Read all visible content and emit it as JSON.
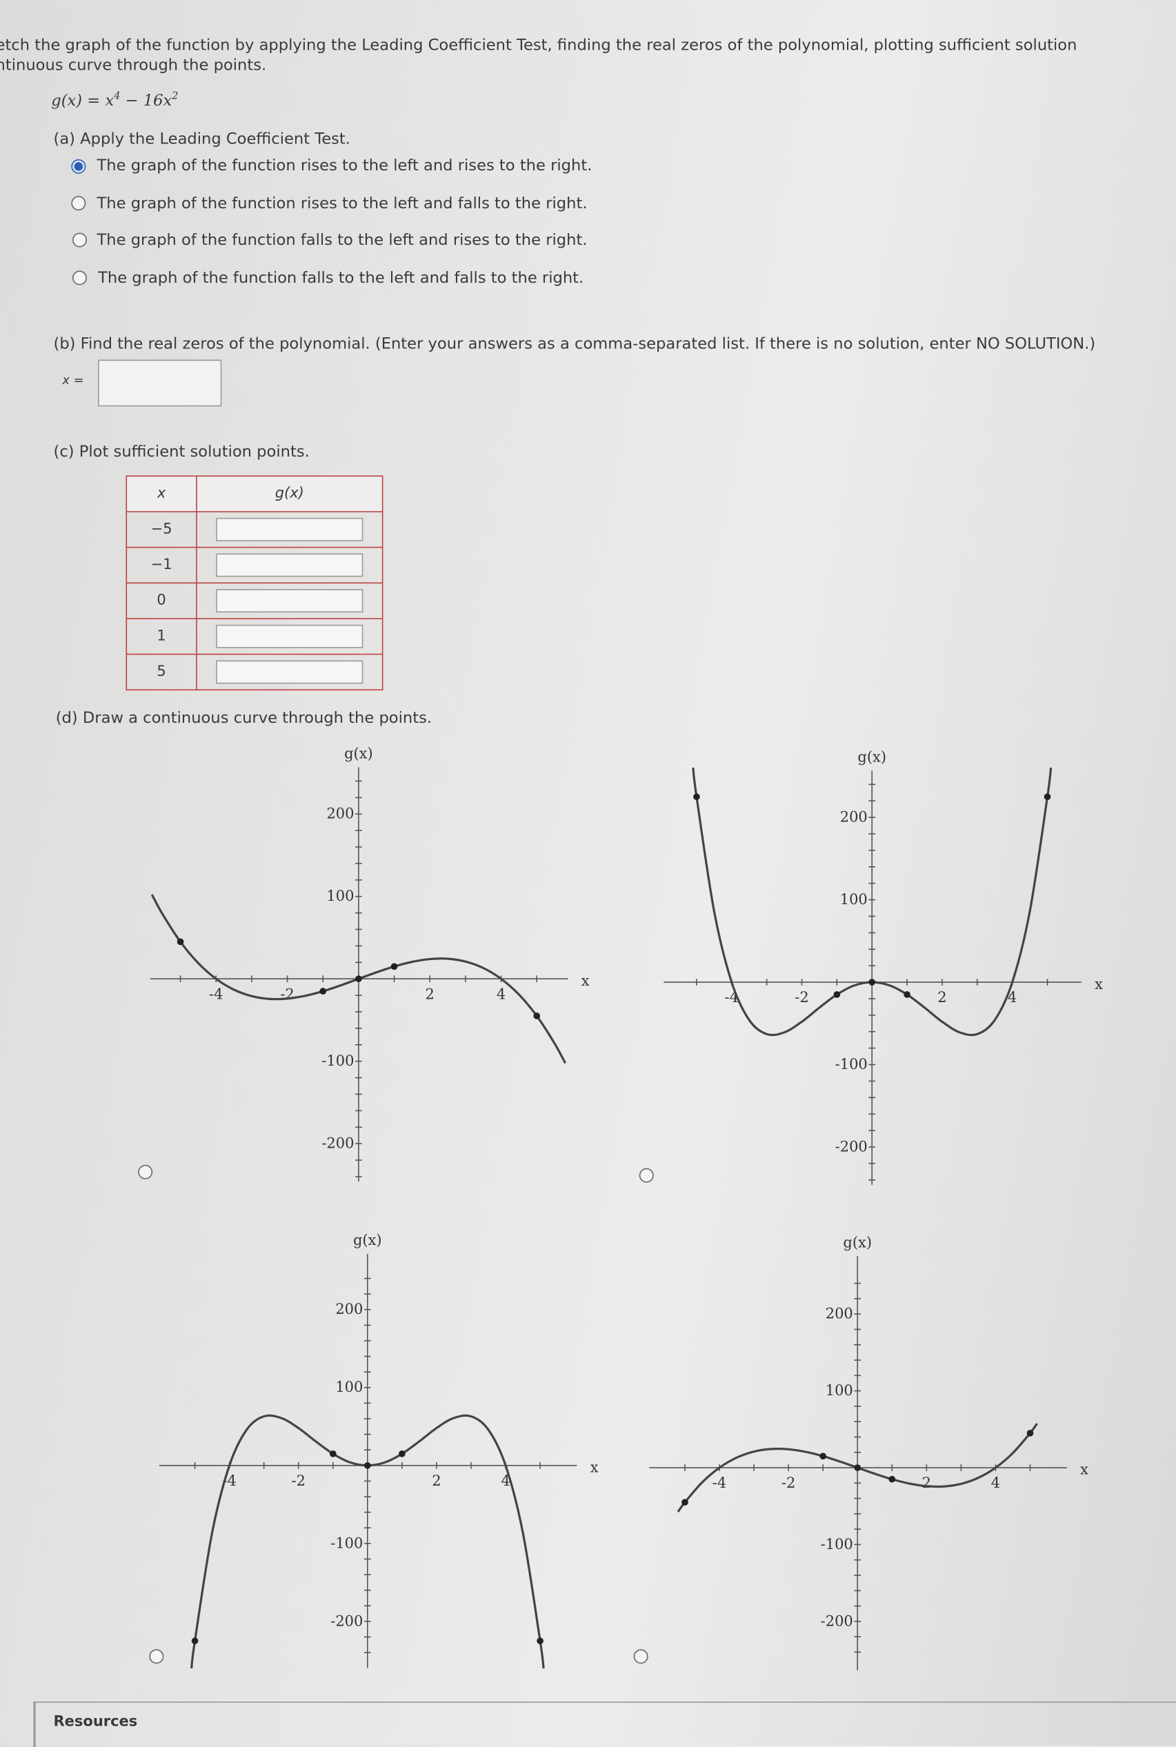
{
  "instructions": [
    "etch the graph of the function by applying the Leading Coefficient Test, finding the real zeros of the polynomial, plotting sufficient solution",
    "ntinuous curve through the points."
  ],
  "function": {
    "lhs": "g(x) = x",
    "exp1": "4",
    "mid": " − 16x",
    "exp2": "2"
  },
  "part_a": {
    "label": "(a) Apply the Leading Coefficient Test.",
    "options": [
      {
        "label": "The graph of the function rises to the left and rises to the right.",
        "selected": true
      },
      {
        "label": "The graph of the function rises to the left and falls to the right.",
        "selected": false
      },
      {
        "label": "The graph of the function falls to the left and rises to the right.",
        "selected": false
      },
      {
        "label": "The graph of the function falls to the left and falls to the right.",
        "selected": false
      }
    ]
  },
  "part_b": {
    "label": "(b) Find the real zeros of the polynomial. (Enter your answers as a comma-separated list. If there is no solution, enter NO SOLUTION.)",
    "input_label": "x =",
    "value": ""
  },
  "part_c": {
    "label": "(c) Plot sufficient solution points.",
    "headers": [
      "x",
      "g(x)"
    ],
    "rows": [
      {
        "x": "−5",
        "g": ""
      },
      {
        "x": "−1",
        "g": ""
      },
      {
        "x": "0",
        "g": ""
      },
      {
        "x": "1",
        "g": ""
      },
      {
        "x": "5",
        "g": ""
      }
    ]
  },
  "part_d": {
    "label": "(d) Draw a continuous curve through the points."
  },
  "chart_data": [
    {
      "type": "line",
      "xlabel": "x",
      "ylabel": "g(x)",
      "xticks": [
        "-4",
        "-2",
        "2",
        "4"
      ],
      "yticks": [
        "200",
        "100",
        "-100",
        "-200"
      ],
      "selected": false,
      "curve": {
        "x": [
          -5.8,
          -5.5,
          -5,
          -4.5,
          -4,
          -3.5,
          -3,
          -2.5,
          -2,
          -1.5,
          -1,
          -0.5,
          0,
          0.5,
          1,
          1.5,
          2,
          2.5,
          3,
          3.5,
          4,
          4.5,
          5,
          5.5,
          5.8
        ],
        "y": [
          102.3,
          78.4,
          45,
          19.1,
          0,
          -13.1,
          -21,
          -24.4,
          -24,
          -20.6,
          -15,
          -7.9,
          0,
          7.9,
          15,
          20.6,
          24,
          24.4,
          21,
          13.1,
          0,
          -19.1,
          -45,
          -78.4,
          -102.3
        ]
      },
      "points": {
        "x": [
          -5,
          -1,
          0,
          1,
          5
        ],
        "y": [
          45,
          -15,
          0,
          15,
          -45
        ]
      }
    },
    {
      "type": "line",
      "xlabel": "x",
      "ylabel": "g(x)",
      "xticks": [
        "-4",
        "-2",
        "2",
        "4"
      ],
      "yticks": [
        "200",
        "100",
        "-100",
        "-200"
      ],
      "selected": false,
      "curve": {
        "x": [
          -5.1,
          -5,
          -4.5,
          -4,
          -3.5,
          -3,
          -2.5,
          -2,
          -1.5,
          -1,
          -0.5,
          0,
          0.5,
          1,
          1.5,
          2,
          2.5,
          3,
          3.5,
          4,
          4.5,
          5,
          5.1
        ],
        "y": [
          260.3,
          225,
          86.1,
          0,
          -45.9,
          -63,
          -60.9,
          -48,
          -30.9,
          -15,
          -3.9,
          0,
          -3.9,
          -15,
          -30.9,
          -48,
          -60.9,
          -63,
          -45.9,
          0,
          86.1,
          225,
          260.3
        ]
      },
      "points": {
        "x": [
          -5,
          -1,
          0,
          1,
          5
        ],
        "y": [
          225,
          -15,
          0,
          -15,
          225
        ]
      }
    },
    {
      "type": "line",
      "xlabel": "x",
      "ylabel": "g(x)",
      "xticks": [
        "-4",
        "-2",
        "2",
        "4"
      ],
      "yticks": [
        "200",
        "100",
        "-100",
        "-200"
      ],
      "selected": false,
      "curve": {
        "x": [
          -5.1,
          -5,
          -4.5,
          -4,
          -3.5,
          -3,
          -2.5,
          -2,
          -1.5,
          -1,
          -0.5,
          0,
          0.5,
          1,
          1.5,
          2,
          2.5,
          3,
          3.5,
          4,
          4.5,
          5,
          5.1
        ],
        "y": [
          -260.3,
          -225,
          -86.1,
          0,
          45.9,
          63,
          60.9,
          48,
          30.9,
          15,
          3.9,
          0,
          3.9,
          15,
          30.9,
          48,
          60.9,
          63,
          45.9,
          0,
          -86.1,
          -225,
          -260.3
        ]
      },
      "points": {
        "x": [
          -5,
          -1,
          0,
          1,
          5
        ],
        "y": [
          -225,
          15,
          0,
          15,
          -225
        ]
      }
    },
    {
      "type": "line",
      "xlabel": "x",
      "ylabel": "g(x)",
      "xticks": [
        "-4",
        "-2",
        "2",
        "4"
      ],
      "yticks": [
        "200",
        "100",
        "-100",
        "-200"
      ],
      "selected": false,
      "curve": {
        "x": [
          -5.2,
          -5,
          -4.5,
          -4,
          -3.5,
          -3,
          -2.5,
          -2,
          -1.5,
          -1,
          -0.5,
          0,
          0.5,
          1,
          1.5,
          2,
          2.5,
          3,
          3.5,
          4,
          4.5,
          5,
          5.2
        ],
        "y": [
          -57.4,
          -45,
          -19.1,
          0,
          13.1,
          21,
          24.4,
          24,
          20.6,
          15,
          7.9,
          0,
          -7.9,
          -15,
          -20.6,
          -24,
          -24.4,
          -21,
          -13.1,
          0,
          19.1,
          45,
          57.4
        ]
      },
      "points": {
        "x": [
          -5,
          -1,
          0,
          1,
          5
        ],
        "y": [
          -45,
          15,
          0,
          -15,
          45
        ]
      }
    }
  ],
  "footer": {
    "resources": "Resources"
  }
}
